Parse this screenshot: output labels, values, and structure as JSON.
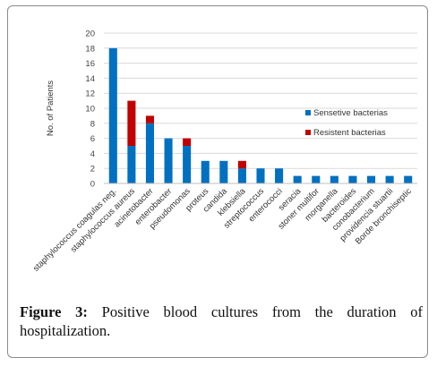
{
  "chart_data": {
    "type": "bar",
    "stacked": true,
    "categories": [
      "staphylococcus coagulas neg.",
      "staphylococcus aureus",
      "acinetobacter",
      "enterobacter",
      "pseudomonas",
      "proteus",
      "candida",
      "klebsiella",
      "streptococcus",
      "enterococci",
      "seracia",
      "stoner multifor",
      "morganella",
      "bacteroides",
      "conobacterium",
      "providencia stuartii",
      "Borde bronchiseptic"
    ],
    "series": [
      {
        "name": "Sensetive bacterias",
        "color": "#0070C0",
        "values": [
          18,
          5,
          8,
          6,
          5,
          3,
          3,
          2,
          2,
          2,
          1,
          1,
          1,
          1,
          1,
          1,
          1
        ]
      },
      {
        "name": "Resistent bacterias",
        "color": "#C00000",
        "values": [
          0,
          6,
          1,
          0,
          1,
          0,
          0,
          1,
          0,
          0,
          0,
          0,
          0,
          0,
          0,
          0,
          0
        ]
      }
    ],
    "ylabel": "No. of Patients",
    "xlabel": "",
    "ylim": [
      0,
      20
    ],
    "yticks": [
      0,
      2,
      4,
      6,
      8,
      10,
      12,
      14,
      16,
      18,
      20
    ],
    "grid": true,
    "legend": "right"
  },
  "caption": {
    "label": "Figure 3:",
    "text": " Positive blood cultures from the duration of hospitalization."
  }
}
